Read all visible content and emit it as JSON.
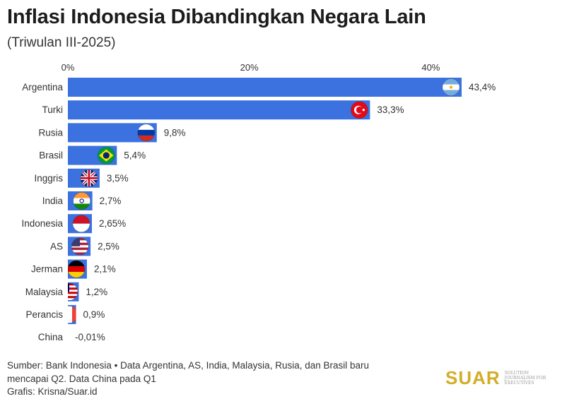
{
  "header": {
    "title": "Inflasi Indonesia Dibandingkan Negara Lain",
    "subtitle": "(Triwulan III-2025)"
  },
  "chart_data": {
    "type": "bar",
    "orientation": "horizontal",
    "categories": [
      "Argentina",
      "Turki",
      "Rusia",
      "Brasil",
      "Inggris",
      "India",
      "Indonesia",
      "AS",
      "Jerman",
      "Malaysia",
      "Perancis",
      "China"
    ],
    "values": [
      43.4,
      33.3,
      9.8,
      5.4,
      3.5,
      2.7,
      2.65,
      2.5,
      2.1,
      1.2,
      0.9,
      -0.01
    ],
    "value_labels": [
      "43,4%",
      "33,3%",
      "9,8%",
      "5,4%",
      "3,5%",
      "2,7%",
      "2,65%",
      "2,5%",
      "2,1%",
      "1,2%",
      "0,9%",
      "-0,01%"
    ],
    "flag_icons": [
      "argentina-flag-icon",
      "turkey-flag-icon",
      "russia-flag-icon",
      "brazil-flag-icon",
      "uk-flag-icon",
      "india-flag-icon",
      "indonesia-flag-icon",
      "usa-flag-icon",
      "germany-flag-icon",
      "malaysia-flag-icon",
      "france-flag-icon",
      ""
    ],
    "x_ticks": [
      0,
      20,
      40
    ],
    "x_tick_labels": [
      "0%",
      "20%",
      "40%"
    ],
    "xlim": [
      0,
      43.4
    ],
    "bar_color": "#3b72e0",
    "grid": false
  },
  "footer": {
    "source_line1": "Sumber: Bank Indonesia • Data Argentina, AS, India, Malaysia, Rusia, dan Brasil baru",
    "source_line2": "mencapai Q2. Data China pada Q1",
    "credit": "Grafis: Krisna/Suar.id"
  },
  "logo": {
    "wordmark": "SUAR",
    "tagline": "Solution Journalism for Executives",
    "color": "#d2ad27"
  }
}
